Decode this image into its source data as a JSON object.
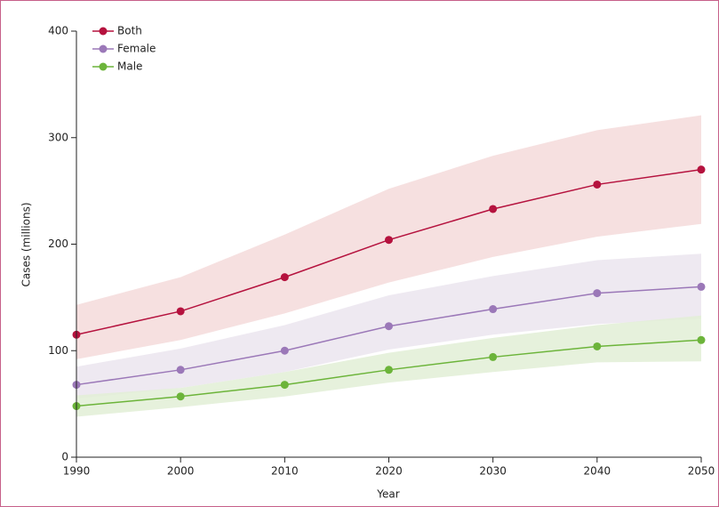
{
  "chart_data": {
    "type": "line",
    "x": [
      1990,
      2000,
      2010,
      2020,
      2030,
      2040,
      2050
    ],
    "xlim": [
      1990,
      2050
    ],
    "xticks": [
      1990,
      2000,
      2010,
      2020,
      2030,
      2040,
      2050
    ],
    "ylim": [
      0,
      400
    ],
    "yticks": [
      0,
      100,
      200,
      300,
      400
    ],
    "xlabel": "Year",
    "ylabel": "Cases (millions)",
    "legend": "upper-left",
    "series": [
      {
        "name": "Both",
        "color": "#b5123e",
        "band_color": "#f4dada",
        "values": [
          115,
          137,
          169,
          204,
          233,
          256,
          270
        ],
        "upper": [
          143,
          169,
          209,
          252,
          283,
          307,
          321
        ],
        "lower": [
          92,
          110,
          135,
          164,
          188,
          207,
          219
        ]
      },
      {
        "name": "Female",
        "color": "#9b78b8",
        "band_color": "#ebe5ef",
        "values": [
          68,
          82,
          100,
          123,
          139,
          154,
          160
        ],
        "upper": [
          85,
          102,
          124,
          152,
          170,
          185,
          191
        ],
        "lower": [
          55,
          65,
          80,
          101,
          115,
          125,
          130
        ]
      },
      {
        "name": "Male",
        "color": "#6cb43a",
        "band_color": "#e2efd6",
        "values": [
          48,
          57,
          68,
          82,
          94,
          104,
          110
        ],
        "upper": [
          58,
          65,
          80,
          98,
          112,
          124,
          133
        ],
        "lower": [
          38,
          47,
          57,
          70,
          80,
          89,
          90
        ]
      }
    ]
  }
}
